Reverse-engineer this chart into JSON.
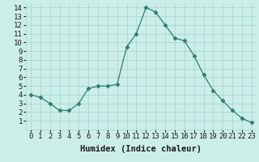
{
  "xlabel": "Humidex (Indice chaleur)",
  "x": [
    0,
    1,
    2,
    3,
    4,
    5,
    6,
    7,
    8,
    9,
    10,
    11,
    12,
    13,
    14,
    15,
    16,
    17,
    18,
    19,
    20,
    21,
    22,
    23
  ],
  "y": [
    4.0,
    3.7,
    3.0,
    2.2,
    2.2,
    3.0,
    4.7,
    5.0,
    5.0,
    5.2,
    9.5,
    11.0,
    14.0,
    13.5,
    12.0,
    10.5,
    10.2,
    8.5,
    6.3,
    4.5,
    3.3,
    2.2,
    1.3,
    0.8
  ],
  "xlim": [
    -0.5,
    23.5
  ],
  "ylim": [
    0.0,
    14.5
  ],
  "yticks": [
    1,
    2,
    3,
    4,
    5,
    6,
    7,
    8,
    9,
    10,
    11,
    12,
    13,
    14
  ],
  "xticks": [
    0,
    1,
    2,
    3,
    4,
    5,
    6,
    7,
    8,
    9,
    10,
    11,
    12,
    13,
    14,
    15,
    16,
    17,
    18,
    19,
    20,
    21,
    22,
    23
  ],
  "line_color": "#2e7d6e",
  "marker": "D",
  "marker_size": 2.5,
  "bg_color": "#cceee8",
  "grid_color": "#a8d8d0",
  "font_color": "#1a1a1a",
  "tick_label_size": 6.5,
  "xlabel_size": 7.5
}
